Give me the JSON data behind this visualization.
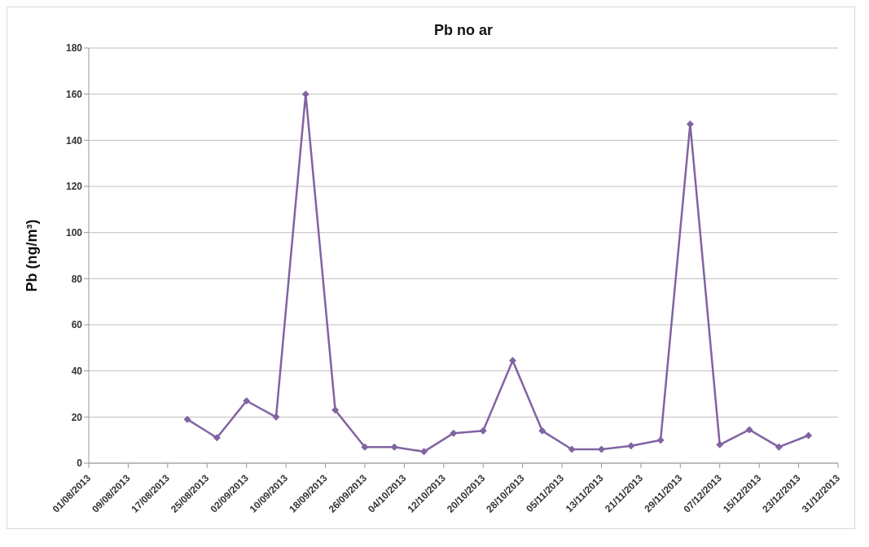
{
  "chart_data": {
    "type": "line",
    "title": "Pb no ar",
    "ylabel": "Pb (ng/m³)",
    "x": [
      "2013-08-21",
      "2013-08-27",
      "2013-09-02",
      "2013-09-08",
      "2013-09-14",
      "2013-09-20",
      "2013-09-26",
      "2013-10-02",
      "2013-10-08",
      "2013-10-14",
      "2013-10-20",
      "2013-10-26",
      "2013-11-01",
      "2013-11-07",
      "2013-11-13",
      "2013-11-19",
      "2013-11-25",
      "2013-12-01",
      "2013-12-07",
      "2013-12-13",
      "2013-12-19",
      "2013-12-25"
    ],
    "series": [
      {
        "color": "#8064a2",
        "values": [
          19,
          11,
          27,
          20,
          160,
          23,
          7,
          7,
          5,
          13,
          14,
          44.5,
          14,
          6,
          6,
          7.5,
          10,
          147,
          8,
          14.5,
          7,
          12
        ]
      }
    ],
    "xlim": [
      "2013-08-01",
      "2013-12-31"
    ],
    "xticks": [
      {
        "value": "2013-08-01",
        "label": "01/08/2013"
      },
      {
        "value": "2013-08-09",
        "label": "09/08/2013"
      },
      {
        "value": "2013-08-17",
        "label": "17/08/2013"
      },
      {
        "value": "2013-08-25",
        "label": "25/08/2013"
      },
      {
        "value": "2013-09-02",
        "label": "02/09/2013"
      },
      {
        "value": "2013-09-10",
        "label": "10/09/2013"
      },
      {
        "value": "2013-09-18",
        "label": "18/09/2013"
      },
      {
        "value": "2013-09-26",
        "label": "26/09/2013"
      },
      {
        "value": "2013-10-04",
        "label": "04/10/2013"
      },
      {
        "value": "2013-10-12",
        "label": "12/10/2013"
      },
      {
        "value": "2013-10-20",
        "label": "20/10/2013"
      },
      {
        "value": "2013-10-28",
        "label": "28/10/2013"
      },
      {
        "value": "2013-11-05",
        "label": "05/11/2013"
      },
      {
        "value": "2013-11-13",
        "label": "13/11/2013"
      },
      {
        "value": "2013-11-21",
        "label": "21/11/2013"
      },
      {
        "value": "2013-11-29",
        "label": "29/11/2013"
      },
      {
        "value": "2013-12-07",
        "label": "07/12/2013"
      },
      {
        "value": "2013-12-15",
        "label": "15/12/2013"
      },
      {
        "value": "2013-12-23",
        "label": "23/12/2013"
      },
      {
        "value": "2013-12-31",
        "label": "31/12/2013"
      }
    ],
    "ylim": [
      0,
      180
    ],
    "yticks": [
      0,
      20,
      40,
      60,
      80,
      100,
      120,
      140,
      160,
      180
    ],
    "grid": "y",
    "marker": "diamond",
    "line_style": "solid"
  }
}
